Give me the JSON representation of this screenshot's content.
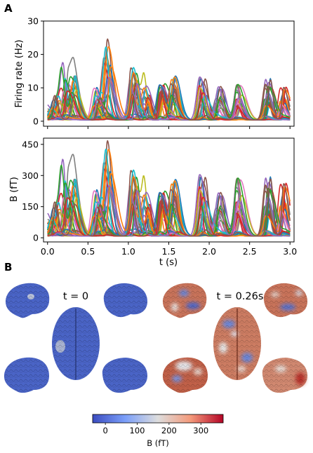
{
  "figure": {
    "panel_a_letter": "A",
    "panel_b_letter": "B"
  },
  "chart_data": [
    {
      "type": "line",
      "ylabel": "Firing rate (Hz)",
      "xlabel": "",
      "xlim": [
        -0.05,
        3.05
      ],
      "ylim": [
        -1.5,
        30
      ],
      "yticks": [
        0,
        10,
        20,
        30
      ],
      "xticks": [
        0.0,
        0.5,
        1.0,
        1.5,
        2.0,
        2.5,
        3.0
      ],
      "xtick_labels_visible": false,
      "grid": false,
      "peak_events": [
        {
          "t": 0.0,
          "max": 4.5
        },
        {
          "t": 0.1,
          "max": 8
        },
        {
          "t": 0.2,
          "max": 15
        },
        {
          "t": 0.3,
          "max": 13.5
        },
        {
          "t": 0.6,
          "max": 10
        },
        {
          "t": 0.72,
          "max": 24.5
        },
        {
          "t": 1.05,
          "max": 17
        },
        {
          "t": 1.2,
          "max": 13
        },
        {
          "t": 1.4,
          "max": 11
        },
        {
          "t": 1.55,
          "max": 13
        },
        {
          "t": 1.9,
          "max": 13
        },
        {
          "t": 2.1,
          "max": 10
        },
        {
          "t": 2.35,
          "max": 11
        },
        {
          "t": 2.7,
          "max": 13
        },
        {
          "t": 2.9,
          "max": 10
        }
      ]
    },
    {
      "type": "line",
      "ylabel": "B (fT)",
      "xlabel": "t (s)",
      "xlim": [
        -0.05,
        3.05
      ],
      "ylim": [
        -20,
        480
      ],
      "yticks": [
        0,
        150,
        300,
        450
      ],
      "xticks": [
        0.0,
        0.5,
        1.0,
        1.5,
        2.0,
        2.5,
        3.0
      ],
      "xtick_labels": [
        "0.0",
        "0.5",
        "1.0",
        "1.5",
        "2.0",
        "2.5",
        "3.0"
      ],
      "grid": false,
      "peak_events": [
        {
          "t": 0.0,
          "max": 110
        },
        {
          "t": 0.1,
          "max": 180
        },
        {
          "t": 0.2,
          "max": 320
        },
        {
          "t": 0.3,
          "max": 280
        },
        {
          "t": 0.6,
          "max": 230
        },
        {
          "t": 0.72,
          "max": 465
        },
        {
          "t": 1.05,
          "max": 345
        },
        {
          "t": 1.2,
          "max": 270
        },
        {
          "t": 1.4,
          "max": 220
        },
        {
          "t": 1.55,
          "max": 270
        },
        {
          "t": 1.9,
          "max": 300
        },
        {
          "t": 2.1,
          "max": 210
        },
        {
          "t": 2.35,
          "max": 290
        },
        {
          "t": 2.7,
          "max": 300
        },
        {
          "t": 2.9,
          "max": 260
        }
      ]
    }
  ],
  "series_colors": [
    "#1f77b4",
    "#ff7f0e",
    "#2ca02c",
    "#d62728",
    "#9467bd",
    "#8c564b",
    "#e377c2",
    "#7f7f7f",
    "#bcbd22",
    "#17becf"
  ],
  "panel_b": {
    "time_labels": [
      "t = 0",
      "t = 0.26s"
    ],
    "colorbar": {
      "label": "B (fT)",
      "ticks": [
        0,
        100,
        200,
        300
      ],
      "range": [
        -40,
        370
      ],
      "colormap": "coolwarm",
      "low_color": "#3b4cc0",
      "mid_color": "#dddddd",
      "high_color": "#b40426"
    },
    "brain_base_color_t0": "#4a64c6",
    "brain_base_color_t1": "#c8735a"
  }
}
